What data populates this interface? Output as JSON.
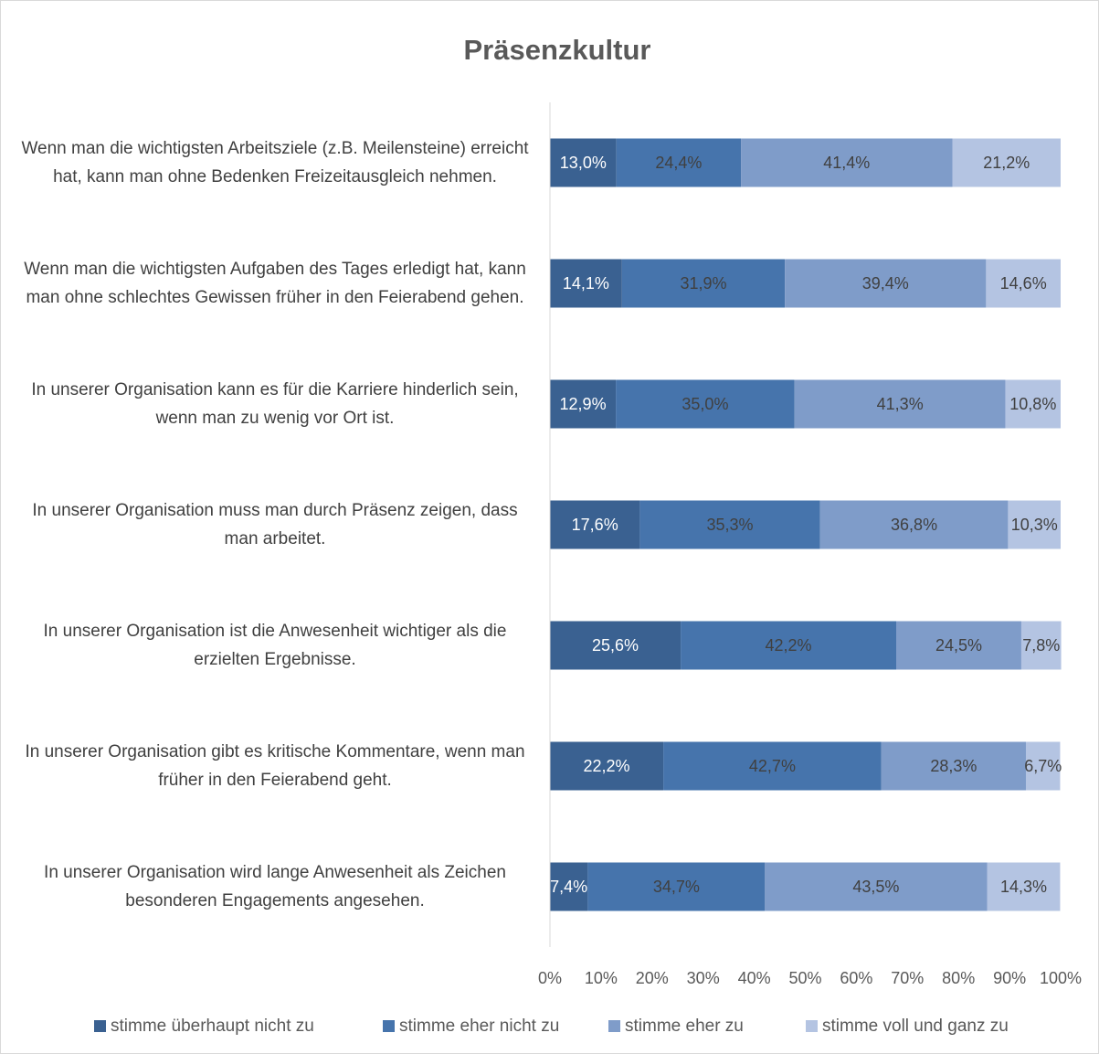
{
  "chart_data": {
    "type": "stacked-bar-horizontal",
    "title": "Präsenzkultur",
    "categories": [
      "Wenn man die wichtigsten Arbeitsziele (z.B. Meilensteine) erreicht hat, kann man ohne Bedenken Freizeitausgleich nehmen.",
      "Wenn man die wichtigsten Aufgaben des Tages erledigt hat, kann man ohne schlechtes Gewissen früher in den Feierabend gehen.",
      "In unserer Organisation kann es für die Karriere hinderlich sein, wenn man zu wenig vor Ort ist.",
      "In unserer Organisation muss man durch Präsenz zeigen, dass man arbeitet.",
      "In unserer Organisation ist die Anwesenheit wichtiger als die erzielten Ergebnisse.",
      "In unserer Organisation gibt es kritische Kommentare, wenn man früher in den Feierabend geht.",
      "In unserer Organisation wird lange Anwesenheit als Zeichen besonderen Engagements angesehen."
    ],
    "series": [
      {
        "name": "stimme überhaupt nicht zu",
        "color": "#3a6191",
        "values": [
          13.0,
          14.1,
          12.9,
          17.6,
          25.6,
          22.2,
          7.4
        ],
        "value_labels": [
          "13,0%",
          "14,1%",
          "12,9%",
          "17,6%",
          "25,6%",
          "22,2%",
          "7,4%"
        ]
      },
      {
        "name": "stimme eher nicht zu",
        "color": "#4674ac",
        "values": [
          24.4,
          31.9,
          35.0,
          35.3,
          42.2,
          42.7,
          34.7
        ],
        "value_labels": [
          "24,4%",
          "31,9%",
          "35,0%",
          "35,3%",
          "42,2%",
          "42,7%",
          "34,7%"
        ]
      },
      {
        "name": "stimme eher zu",
        "color": "#7f9cc9",
        "values": [
          41.4,
          39.4,
          41.3,
          36.8,
          24.5,
          28.3,
          43.5
        ],
        "value_labels": [
          "41,4%",
          "39,4%",
          "41,3%",
          "36,8%",
          "24,5%",
          "28,3%",
          "43,5%"
        ]
      },
      {
        "name": "stimme voll und ganz zu",
        "color": "#b4c4e2",
        "values": [
          21.2,
          14.6,
          10.8,
          10.3,
          7.8,
          6.7,
          14.3
        ],
        "value_labels": [
          "21,2%",
          "14,6%",
          "10,8%",
          "10,3%",
          "7,8%",
          "6,7%",
          "14,3%"
        ]
      }
    ],
    "xlim": [
      0,
      100
    ],
    "xticks": [
      {
        "value": 0,
        "label": "0%"
      },
      {
        "value": 10,
        "label": "10%"
      },
      {
        "value": 20,
        "label": "20%"
      },
      {
        "value": 30,
        "label": "30%"
      },
      {
        "value": 40,
        "label": "40%"
      },
      {
        "value": 50,
        "label": "50%"
      },
      {
        "value": 60,
        "label": "60%"
      },
      {
        "value": 70,
        "label": "70%"
      },
      {
        "value": 80,
        "label": "80%"
      },
      {
        "value": 90,
        "label": "90%"
      },
      {
        "value": 100,
        "label": "100%"
      }
    ],
    "legend": "bottom"
  }
}
